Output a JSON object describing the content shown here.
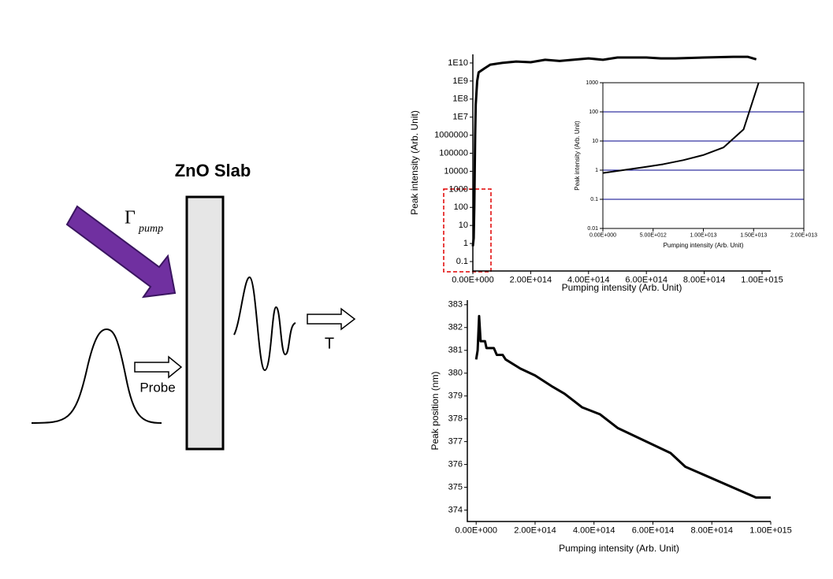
{
  "diagram": {
    "title": "ZnO Slab",
    "pump_label": "Γ",
    "pump_subscript": "pump",
    "probe_label": "Probe",
    "output_label": "T"
  },
  "chart_data": [
    {
      "type": "line",
      "x_label": "Pumping intensity (Arb. Unit)",
      "y_label": "Peak intensity (Arb. Unit)",
      "log_scale": "y",
      "color": "#000000",
      "x": [
        0,
        3000000000000,
        5000000000000,
        8000000000000,
        10000000000000,
        15000000000000,
        20000000000000,
        40000000000000,
        60000000000000,
        100000000000000,
        150000000000000,
        200000000000000,
        250000000000000,
        300000000000000,
        400000000000000,
        450000000000000,
        500000000000000,
        600000000000000,
        650000000000000,
        700000000000000,
        800000000000000,
        900000000000000,
        950000000000000,
        980000000000000
      ],
      "values": [
        0.7,
        2,
        100,
        1000000,
        50000000,
        1000000000,
        3000000000,
        5000000000,
        8000000000,
        10000000000,
        12000000000,
        11000000000,
        15000000000,
        13000000000,
        18000000000,
        15000000000,
        20000000000,
        20000000000,
        18000000000,
        18000000000,
        20000000000,
        22000000000,
        22000000000,
        16000000000
      ],
      "xlim": [
        0,
        1030000000000000
      ],
      "ylim": [
        0.03,
        30000000000
      ],
      "xticks": [
        {
          "value": 0,
          "label": "0.00E+000"
        },
        {
          "value": 200000000000000,
          "label": "2.00E+014"
        },
        {
          "value": 400000000000000,
          "label": "4.00E+014"
        },
        {
          "value": 600000000000000,
          "label": "6.00E+014"
        },
        {
          "value": 800000000000000,
          "label": "8.00E+014"
        },
        {
          "value": 1000000000000000,
          "label": "1.00E+015"
        }
      ],
      "yticks": [
        0.1,
        1,
        10,
        100,
        1000,
        10000,
        100000,
        1000000,
        {
          "value": 10000000,
          "label": "1E7"
        },
        {
          "value": 100000000,
          "label": "1E8"
        },
        {
          "value": 1000000000,
          "label": "1E9"
        },
        {
          "value": 10000000000,
          "label": "1E10"
        }
      ],
      "grid": false
    },
    {
      "type": "line",
      "x_label": "Pumping intensity (Arb. Unit)",
      "y_label": "Peak intensity (Arb. Unit)",
      "log_scale": "y",
      "color": "#000000",
      "x": [
        0,
        2000000000000,
        4000000000000,
        6000000000000,
        8000000000000,
        10000000000000,
        12000000000000,
        14000000000000,
        15500000000000
      ],
      "values": [
        0.8,
        1,
        1.25,
        1.6,
        2.2,
        3.3,
        6,
        25,
        1000
      ],
      "xlim": [
        0,
        20000000000000
      ],
      "ylim": [
        0.01,
        1000
      ],
      "xticks": [
        {
          "value": 0,
          "label": "0.00E+000"
        },
        {
          "value": 5000000000000,
          "label": "5.00E+012"
        },
        {
          "value": 10000000000000,
          "label": "1.00E+013"
        },
        {
          "value": 15000000000000,
          "label": "1.50E+013"
        },
        {
          "value": 20000000000000,
          "label": "2.00E+013"
        }
      ],
      "yticks": [
        0.01,
        0.1,
        1,
        10,
        100,
        1000
      ],
      "grid": true,
      "grid_color": "#00008b"
    },
    {
      "type": "line",
      "x_label": "Pumping intensity (Arb. Unit)",
      "y_label": "Peak position (nm)",
      "color": "#000000",
      "x": [
        0,
        5000000000000,
        10000000000000,
        15000000000000,
        30000000000000,
        35000000000000,
        60000000000000,
        70000000000000,
        90000000000000,
        100000000000000,
        150000000000000,
        200000000000000,
        260000000000000,
        300000000000000,
        360000000000000,
        420000000000000,
        480000000000000,
        660000000000000,
        710000000000000,
        950000000000000,
        1000000000000000
      ],
      "values": [
        380.6,
        381,
        382.5,
        381.4,
        381.4,
        381.1,
        381.1,
        380.8,
        380.8,
        380.6,
        380.2,
        379.9,
        379.4,
        379.1,
        378.5,
        378.2,
        377.6,
        376.5,
        375.9,
        374.55,
        374.55
      ],
      "xlim": [
        -30000000000000,
        1000000000000000
      ],
      "ylim": [
        373.5,
        383.2
      ],
      "xticks": [
        {
          "value": 0,
          "label": "0.00E+000"
        },
        {
          "value": 200000000000000,
          "label": "2.00E+014"
        },
        {
          "value": 400000000000000,
          "label": "4.00E+014"
        },
        {
          "value": 600000000000000,
          "label": "6.00E+014"
        },
        {
          "value": 800000000000000,
          "label": "8.00E+014"
        },
        {
          "value": 1000000000000000,
          "label": "1.00E+015"
        }
      ],
      "yticks": [
        374,
        375,
        376,
        377,
        378,
        379,
        380,
        381,
        382,
        383
      ],
      "grid": false
    }
  ]
}
